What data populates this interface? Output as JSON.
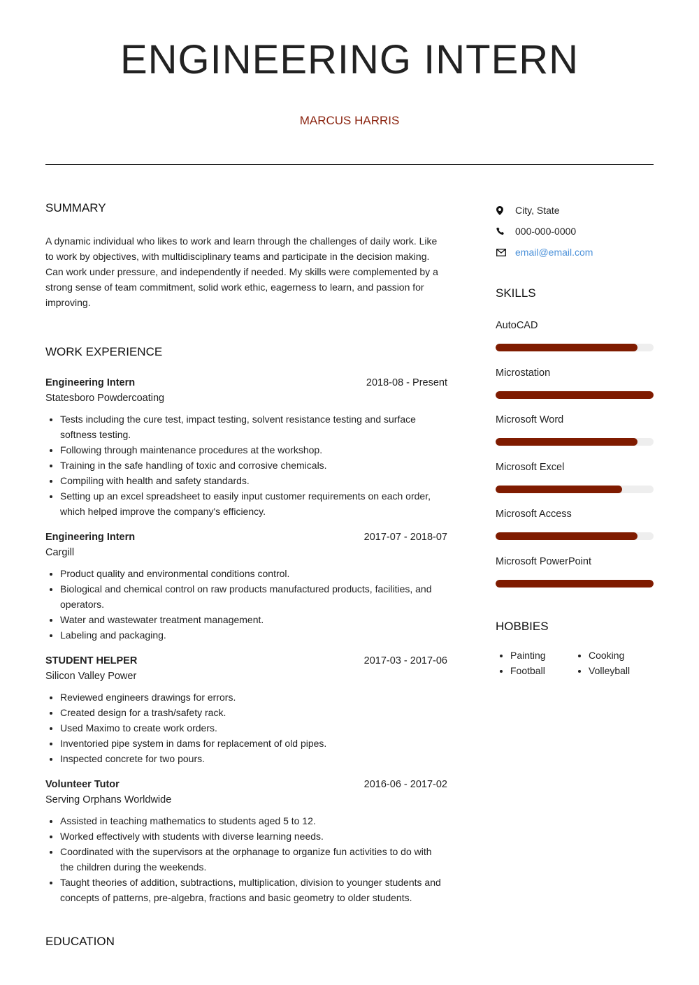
{
  "header": {
    "title": "ENGINEERING INTERN",
    "name": "MARCUS HARRIS"
  },
  "summary": {
    "heading": "SUMMARY",
    "text": "A dynamic individual who likes to work and learn through the challenges of daily work. Like to work by objectives, with multidisciplinary teams and participate in the decision making. Can work under pressure, and independently if needed. My skills were complemented by a strong sense of team commitment, solid work ethic, eagerness to learn, and passion for improving."
  },
  "work": {
    "heading": "WORK EXPERIENCE",
    "jobs": [
      {
        "title": "Engineering Intern",
        "dates": "2018-08 - Present",
        "company": "Statesboro Powdercoating",
        "bullets": [
          "Tests including the cure test, impact testing, solvent resistance testing and surface softness testing.",
          "Following through maintenance procedures at the workshop.",
          "Training in the safe handling of toxic and corrosive chemicals.",
          "Compiling with health and safety standards.",
          "Setting up an excel spreadsheet to easily input customer requirements on each order, which helped improve the company's efficiency."
        ]
      },
      {
        "title": "Engineering Intern",
        "dates": "2017-07 - 2018-07",
        "company": "Cargill",
        "bullets": [
          "Product quality and environmental conditions control.",
          "Biological and chemical control on raw products manufactured products, facilities, and operators.",
          "Water and wastewater treatment management.",
          "Labeling and packaging."
        ]
      },
      {
        "title": "STUDENT HELPER",
        "dates": "2017-03 - 2017-06",
        "company": "Silicon Valley Power",
        "bullets": [
          "Reviewed engineers drawings for errors.",
          "Created design for a trash/safety rack.",
          "Used Maximo to create work orders.",
          "Inventoried pipe system in dams for replacement of old pipes.",
          "Inspected concrete for two pours."
        ]
      },
      {
        "title": "Volunteer Tutor",
        "dates": "2016-06 - 2017-02",
        "company": "Serving Orphans Worldwide",
        "bullets": [
          "Assisted in teaching mathematics to students aged 5 to 12.",
          "Worked effectively with students with diverse learning needs.",
          "Coordinated with the supervisors at the orphanage to organize fun activities to do with the children during the weekends.",
          "Taught theories of addition, subtractions, multiplication, division to younger students and concepts of patterns, pre-algebra, fractions and basic geometry to older students."
        ]
      }
    ]
  },
  "education": {
    "heading": "EDUCATION"
  },
  "contact": {
    "location": "City, State",
    "phone": "000-000-0000",
    "email": "email@email.com"
  },
  "skills": {
    "heading": "SKILLS",
    "bar_color": "#7f1b00",
    "items": [
      {
        "name": "AutoCAD",
        "level": 0.9
      },
      {
        "name": "Microstation",
        "level": 1.0
      },
      {
        "name": "Microsoft Word",
        "level": 0.9
      },
      {
        "name": "Microsoft Excel",
        "level": 0.8
      },
      {
        "name": "Microsoft Access",
        "level": 0.9
      },
      {
        "name": "Microsoft PowerPoint",
        "level": 1.0
      }
    ]
  },
  "hobbies": {
    "heading": "HOBBIES",
    "items": [
      "Painting",
      "Cooking",
      "Football",
      "Volleyball"
    ]
  }
}
